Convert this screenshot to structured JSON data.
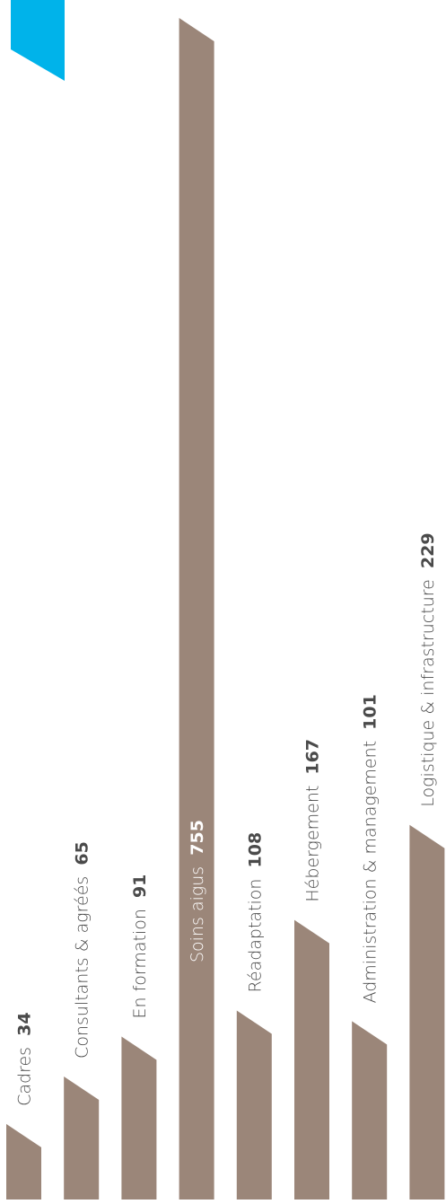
{
  "chart_data": {
    "type": "bar",
    "orientation": "vertical-rotated-labels",
    "categories": [
      "Cadres",
      "Consultants & agréés",
      "En formation",
      "Soins aigus",
      "Réadaptation",
      "Hébergement",
      "Administration & management",
      "Logistique & infrastructure"
    ],
    "values": [
      34,
      65,
      91,
      755,
      108,
      167,
      101,
      229
    ],
    "title": "",
    "xlabel": "",
    "ylabel": "",
    "grid": false,
    "legend": "none"
  },
  "colors": {
    "bar": "#9b8679",
    "accent": "#00b3ea",
    "label_inside_bar": "#ffffff",
    "label": "#4a4a4a"
  }
}
